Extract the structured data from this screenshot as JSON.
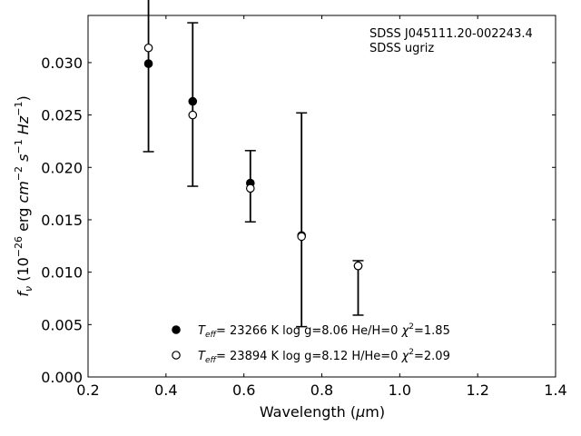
{
  "chart_data": {
    "type": "scatter",
    "annotation": [
      "SDSS J045111.20-002243.4",
      "SDSS ugriz"
    ],
    "xlabel": "Wavelength (μm)",
    "ylabel": "fν (10⁻²⁶ erg cm⁻² s⁻¹ Hz⁻¹)",
    "xlim": [
      0.2,
      1.4
    ],
    "ylim": [
      0.0,
      0.0345
    ],
    "xticks": [
      "0.2",
      "0.4",
      "0.6",
      "0.8",
      "1.0",
      "1.2",
      "1.4"
    ],
    "yticks": [
      "0.000",
      "0.005",
      "0.010",
      "0.015",
      "0.020",
      "0.025",
      "0.030"
    ],
    "grid": false,
    "observed": {
      "x": [
        0.3551,
        0.4686,
        0.6166,
        0.748,
        0.8932
      ],
      "y": [
        0.035,
        0.026,
        0.0182,
        0.015,
        0.0085
      ],
      "yerr": [
        0.0135,
        0.0078,
        0.0034,
        0.0102,
        0.0026
      ]
    },
    "series": [
      {
        "name": "T_eff= 23266 K  log g=8.06  He/H=0  χ²=1.85",
        "marker": "filled-circle",
        "x": [
          0.3551,
          0.4686,
          0.6166,
          0.748,
          0.8932
        ],
        "y": [
          0.0299,
          0.0263,
          0.0185,
          0.0135,
          0.0106
        ]
      },
      {
        "name": "T_eff= 23894 K  log g=8.12  H/He=0  χ²=2.09",
        "marker": "open-circle",
        "x": [
          0.3551,
          0.4686,
          0.6166,
          0.748,
          0.8932
        ],
        "y": [
          0.0314,
          0.025,
          0.018,
          0.0134,
          0.0106
        ]
      }
    ],
    "legend_position": "bottom-center"
  }
}
